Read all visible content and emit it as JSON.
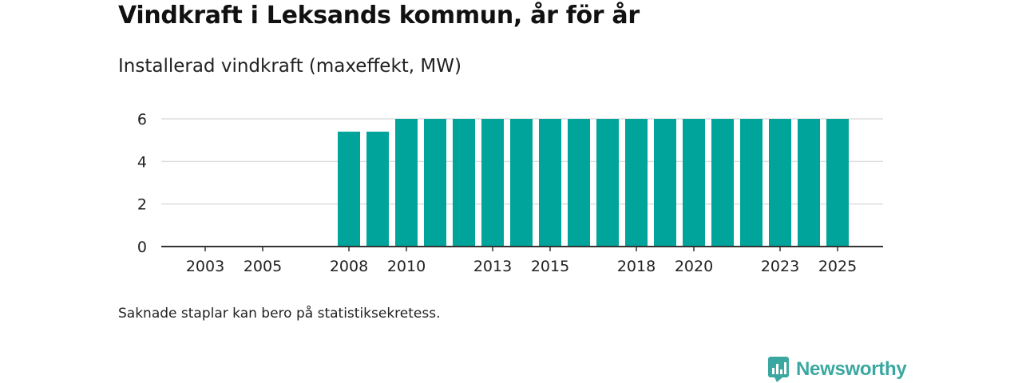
{
  "header": {
    "title": "Vindkraft i Leksands kommun, år för år",
    "subtitle": "Installerad vindkraft (maxeffekt, MW)"
  },
  "footer": {
    "note": "Saknade staplar kan bero på statistiksekretess.",
    "brand": "Newsworthy"
  },
  "colors": {
    "bar": "#00a49a",
    "grid": "#dddddd",
    "axis": "#333333",
    "brand": "#3aa8a0"
  },
  "chart_data": {
    "type": "bar",
    "title": "Vindkraft i Leksands kommun, år för år",
    "subtitle": "Installerad vindkraft (maxeffekt, MW)",
    "xlabel": "",
    "ylabel": "Installerad vindkraft (maxeffekt, MW)",
    "categories": [
      "2002",
      "2003",
      "2004",
      "2005",
      "2006",
      "2007",
      "2008",
      "2009",
      "2010",
      "2011",
      "2012",
      "2013",
      "2014",
      "2015",
      "2016",
      "2017",
      "2018",
      "2019",
      "2020",
      "2021",
      "2022",
      "2023",
      "2024",
      "2025"
    ],
    "values": [
      null,
      null,
      null,
      null,
      null,
      null,
      5.4,
      5.4,
      6,
      6,
      6,
      6,
      6,
      6,
      6,
      6,
      6,
      6,
      6,
      6,
      6,
      6,
      6,
      6
    ],
    "x_tick_labels": [
      "2003",
      "2005",
      "2008",
      "2010",
      "2013",
      "2015",
      "2018",
      "2020",
      "2023",
      "2025"
    ],
    "y_ticks": [
      0,
      2,
      4,
      6
    ],
    "ylim": [
      0,
      6
    ],
    "grid": true,
    "legend": "none"
  }
}
